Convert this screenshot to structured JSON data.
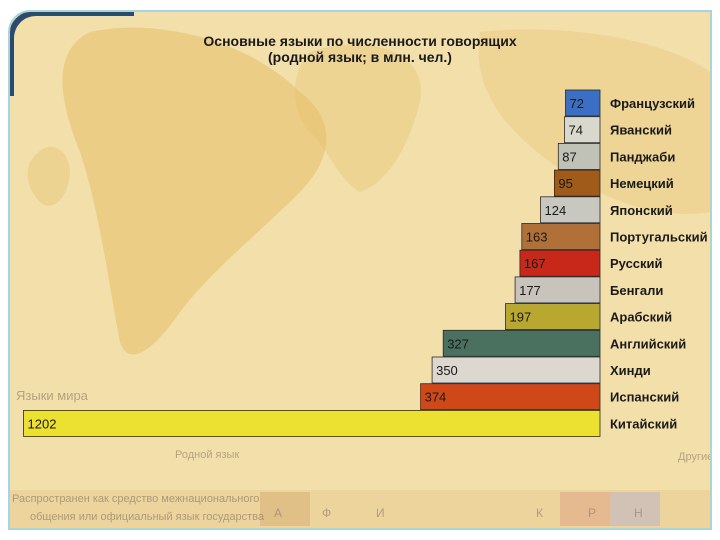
{
  "chart_data": {
    "type": "bar",
    "orientation": "horizontal",
    "title_line1": "Основные языки по численности говорящих",
    "title_line2": "(родной язык; в млн. чел.)",
    "categories": [
      "Французский",
      "Яванский",
      "Панджаби",
      "Немецкий",
      "Японский",
      "Португальский",
      "Русский",
      "Бенгали",
      "Арабский",
      "Английский",
      "Хинди",
      "Испанский",
      "Китайский"
    ],
    "values": [
      72,
      74,
      87,
      95,
      124,
      163,
      167,
      177,
      197,
      327,
      350,
      374,
      1202
    ],
    "bar_colors": [
      "#3a6fc4",
      "#d8d8cc",
      "#c0c2b8",
      "#a05a1a",
      "#c8c8c0",
      "#b07038",
      "#c8281a",
      "#c8c4bc",
      "#b8a830",
      "#4a7060",
      "#dcd8d0",
      "#d04818",
      "#ece030"
    ],
    "value_label_colors": [
      "#ffffff",
      "#1a1a1a",
      "#1a1a1a",
      "#1a1a1a",
      "#1a1a1a",
      "#1a1a1a",
      "#f0d0c8",
      "#1a1a1a",
      "#1a1a1a",
      "#1a1a1a",
      "#1a1a1a",
      "#1a1a1a",
      "#1a1a1a"
    ],
    "grid": false,
    "legend": "none"
  },
  "background": {
    "map_labels": [
      "Языки мира",
      "Родной язык",
      "Другие",
      "Распространен как средство межнационального",
      "общения или официальный язык государства",
      "А",
      "Ф",
      "И",
      "К",
      "Р",
      "Н"
    ]
  }
}
